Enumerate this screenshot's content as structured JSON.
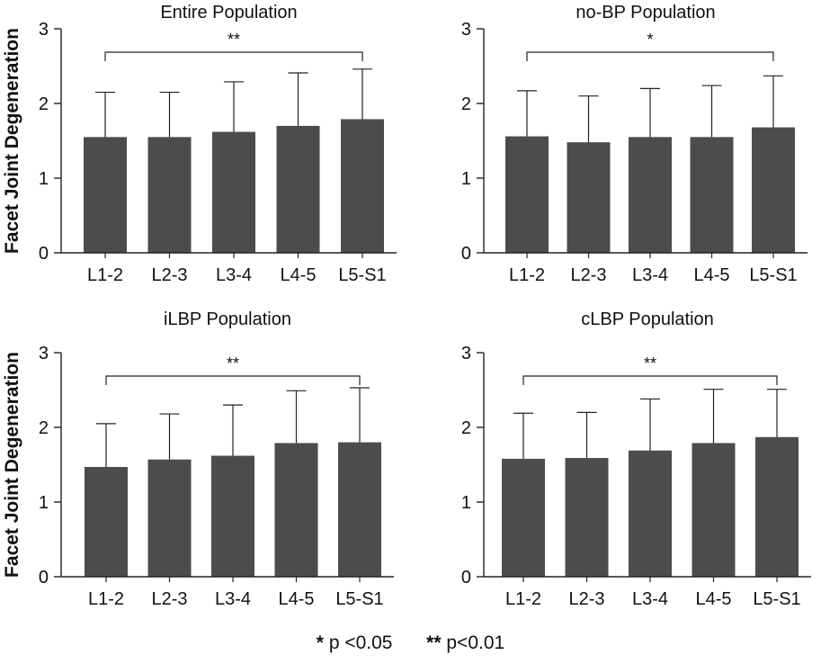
{
  "figure": {
    "y_axis_label": "Facet Joint Degeneration",
    "bar_color": "#4a4d4a",
    "footnote": {
      "single_star": "*",
      "single_text": "p <0.05",
      "double_star": "**",
      "double_text": "p<0.01"
    }
  },
  "chart_data": [
    {
      "type": "bar",
      "title": "Entire Population",
      "categories": [
        "L1-2",
        "L2-3",
        "L3-4",
        "L4-5",
        "L5-S1"
      ],
      "values": [
        1.55,
        1.55,
        1.62,
        1.7,
        1.79
      ],
      "error_upper": [
        2.15,
        2.15,
        2.29,
        2.41,
        2.46
      ],
      "ylim": [
        0,
        3
      ],
      "yticks": [
        "0",
        "1",
        "2",
        "3"
      ],
      "ylabel": "Facet Joint Degeneration",
      "significance": {
        "from": "L1-2",
        "to": "L5-S1",
        "label": "**"
      }
    },
    {
      "type": "bar",
      "title": "no-BP Population",
      "categories": [
        "L1-2",
        "L2-3",
        "L3-4",
        "L4-5",
        "L5-S1"
      ],
      "values": [
        1.56,
        1.48,
        1.55,
        1.55,
        1.68
      ],
      "error_upper": [
        2.17,
        2.1,
        2.2,
        2.24,
        2.37
      ],
      "ylim": [
        0,
        3
      ],
      "yticks": [
        "0",
        "1",
        "2",
        "3"
      ],
      "ylabel": "",
      "significance": {
        "from": "L1-2",
        "to": "L5-S1",
        "label": "*"
      }
    },
    {
      "type": "bar",
      "title": "iLBP Population",
      "categories": [
        "L1-2",
        "L2-3",
        "L3-4",
        "L4-5",
        "L5-S1"
      ],
      "values": [
        1.47,
        1.57,
        1.62,
        1.79,
        1.8
      ],
      "error_upper": [
        2.05,
        2.18,
        2.3,
        2.49,
        2.53
      ],
      "ylim": [
        0,
        3
      ],
      "yticks": [
        "0",
        "1",
        "2",
        "3"
      ],
      "ylabel": "Facet Joint Degeneration",
      "significance": {
        "from": "L1-2",
        "to": "L5-S1",
        "label": "**"
      }
    },
    {
      "type": "bar",
      "title": "cLBP Population",
      "categories": [
        "L1-2",
        "L2-3",
        "L3-4",
        "L4-5",
        "L5-S1"
      ],
      "values": [
        1.58,
        1.59,
        1.69,
        1.79,
        1.87
      ],
      "error_upper": [
        2.19,
        2.2,
        2.38,
        2.51,
        2.51
      ],
      "ylim": [
        0,
        3
      ],
      "yticks": [
        "0",
        "1",
        "2",
        "3"
      ],
      "ylabel": "",
      "significance": {
        "from": "L1-2",
        "to": "L5-S1",
        "label": "**"
      }
    }
  ]
}
